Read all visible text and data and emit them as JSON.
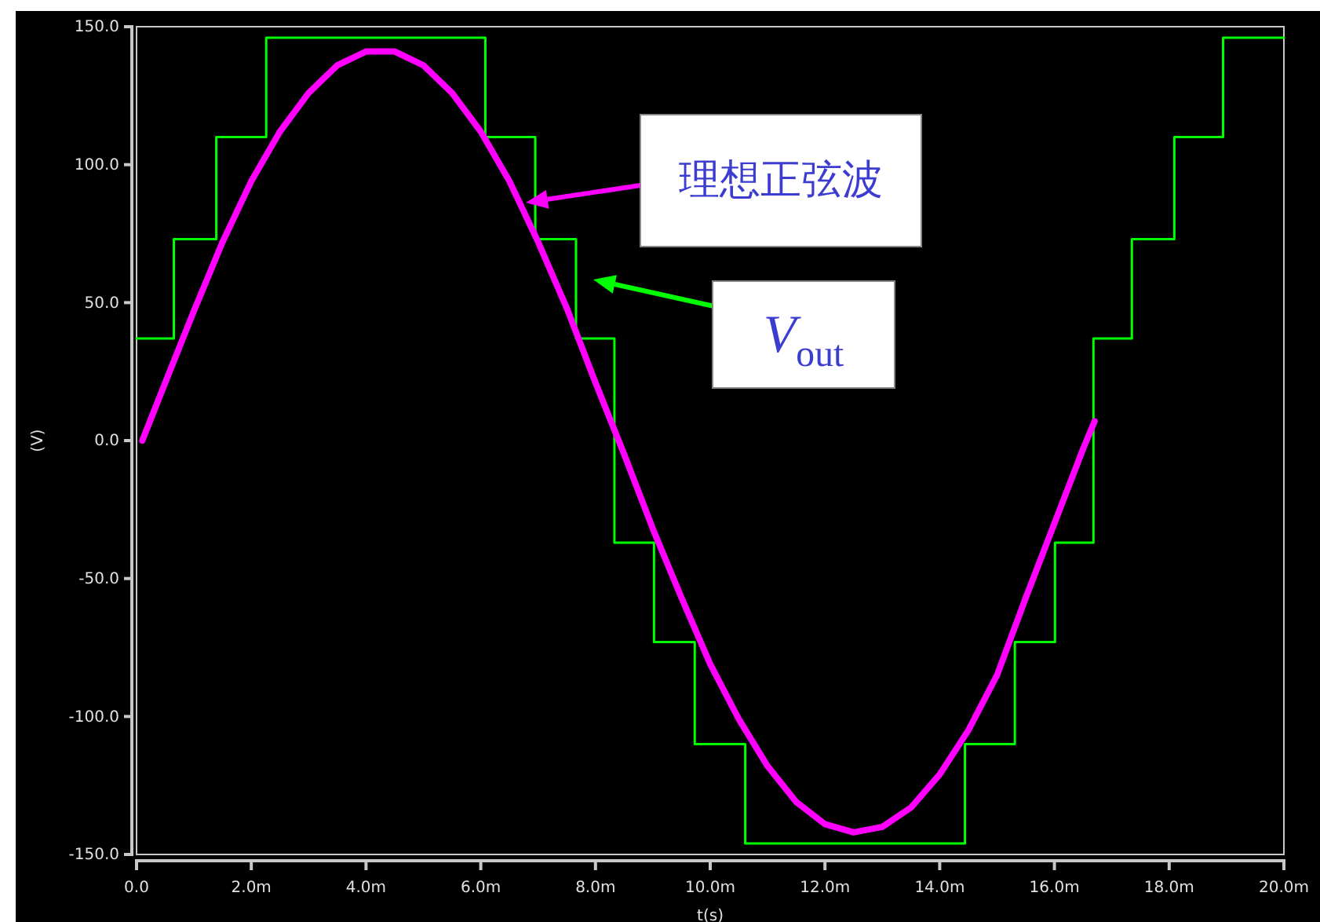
{
  "chart_data": {
    "type": "line",
    "xlabel": "t(s)",
    "ylabel": "(V)",
    "xlim": [
      0,
      20
    ],
    "ylim": [
      -150,
      150
    ],
    "xticks": [
      {
        "value": 0,
        "label": "0.0"
      },
      {
        "value": 2,
        "label": "2.0m"
      },
      {
        "value": 4,
        "label": "4.0m"
      },
      {
        "value": 6,
        "label": "6.0m"
      },
      {
        "value": 8,
        "label": "8.0m"
      },
      {
        "value": 10,
        "label": "10.0m"
      },
      {
        "value": 12,
        "label": "12.0m"
      },
      {
        "value": 14,
        "label": "14.0m"
      },
      {
        "value": 16,
        "label": "16.0m"
      },
      {
        "value": 18,
        "label": "18.0m"
      },
      {
        "value": 20,
        "label": "20.0m"
      }
    ],
    "yticks": [
      {
        "value": -150,
        "label": "-150.0"
      },
      {
        "value": -100,
        "label": "-100.0"
      },
      {
        "value": -50,
        "label": "-50.0"
      },
      {
        "value": 0,
        "label": "0.0"
      },
      {
        "value": 50,
        "label": "50.0"
      },
      {
        "value": 100,
        "label": "100.0"
      },
      {
        "value": 150,
        "label": "150.0"
      }
    ],
    "grid": false,
    "legend": false,
    "marker": "none",
    "line_style": "solid",
    "series": [
      {
        "type": "step",
        "color": "#00ff00",
        "x": [
          0,
          0.65,
          1.39,
          2.26,
          6.08,
          6.95,
          7.66,
          8.33,
          9.02,
          9.73,
          10.61,
          14.44,
          15.31,
          16.01,
          16.68,
          17.35,
          18.09,
          18.94,
          20
        ],
        "values": [
          37,
          73,
          110,
          146,
          110,
          73,
          37,
          -37,
          -73,
          -110,
          -146,
          -110,
          -73,
          -37,
          37,
          73,
          110,
          146,
          146
        ]
      },
      {
        "type": "line",
        "color": "#ff00ff",
        "x": [
          0.1,
          0.5,
          1,
          1.5,
          2,
          2.5,
          3,
          3.5,
          4,
          4.5,
          5,
          5.5,
          6,
          6.5,
          7,
          7.5,
          8,
          8.5,
          9,
          9.5,
          10,
          10.5,
          11,
          11.5,
          12,
          12.5,
          13,
          13.5,
          14,
          14.5,
          15,
          15.5,
          16,
          16.5,
          16.7
        ],
        "values": [
          0,
          21,
          47,
          72,
          94,
          112,
          126,
          136,
          141,
          141,
          136,
          126,
          112,
          94,
          72,
          48,
          21,
          -5,
          -32,
          -57,
          -81,
          -101,
          -118,
          -131,
          -139,
          -142,
          -140,
          -133,
          -121,
          -105,
          -85,
          -57,
          -30,
          -3,
          7
        ]
      }
    ],
    "annotations": [
      "理想正弦波",
      "V$_{out}$"
    ]
  }
}
